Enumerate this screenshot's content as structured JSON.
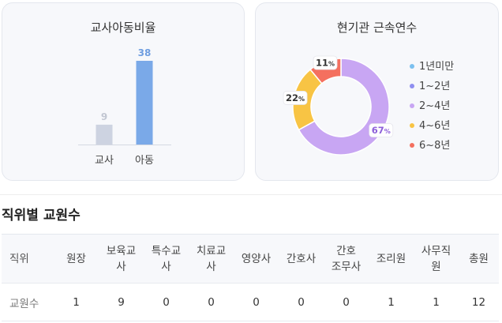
{
  "ratio_card": {
    "title": "교사아동비율"
  },
  "tenure_card": {
    "title": "현기관 근속연수"
  },
  "chart_data": [
    {
      "type": "bar",
      "title": "교사아동비율",
      "categories": [
        "교사",
        "아동"
      ],
      "values": [
        9,
        38
      ],
      "colors": [
        "#cdd3e1",
        "#7aa9e8"
      ],
      "label_colors": [
        "#c2c7d2",
        "#6f9ee0"
      ]
    },
    {
      "type": "pie",
      "title": "현기관 근속연수",
      "categories": [
        "1년미만",
        "1~2년",
        "2~4년",
        "4~6년",
        "6~8년"
      ],
      "values": [
        0,
        0,
        67,
        22,
        11
      ],
      "colors": [
        "#7cc0ef",
        "#8f8ff0",
        "#c8a6f3",
        "#f8c444",
        "#f4705f"
      ],
      "label_suffix": "%",
      "legend": "right"
    }
  ],
  "staff_section": {
    "title": "직위별 교원수",
    "headers": [
      "직위",
      "원장",
      "보육교사",
      "특수교사",
      "치료교사",
      "영양사",
      "간호사",
      "간호조무사",
      "조리원",
      "사무직원",
      "총원"
    ],
    "row_label": "교원수",
    "values": [
      "1",
      "9",
      "0",
      "0",
      "0",
      "0",
      "0",
      "1",
      "1",
      "12"
    ]
  }
}
